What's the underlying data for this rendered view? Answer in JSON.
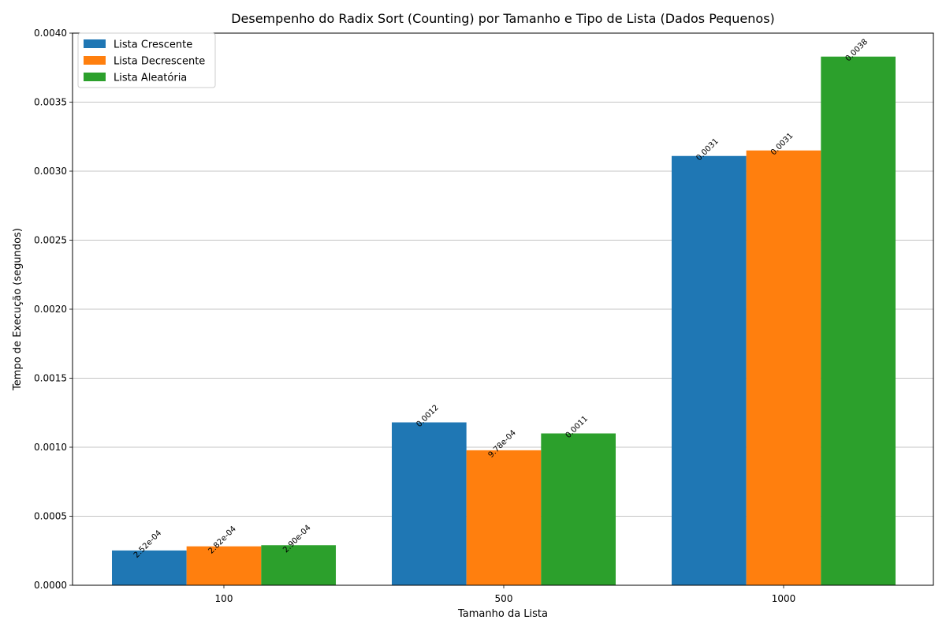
{
  "chart_data": {
    "type": "bar",
    "title": "Desempenho do Radix Sort (Counting) por Tamanho e Tipo de Lista (Dados Pequenos)",
    "xlabel": "Tamanho da Lista",
    "ylabel": "Tempo de Execução (segundos)",
    "categories": [
      "100",
      "500",
      "1000"
    ],
    "ylim": [
      0,
      0.004
    ],
    "yticks": [
      "0.0000",
      "0.0005",
      "0.0010",
      "0.0015",
      "0.0020",
      "0.0025",
      "0.0030",
      "0.0035",
      "0.0040"
    ],
    "grid": "y",
    "legend_position": "top-left",
    "series": [
      {
        "name": "Lista Crescente",
        "color": "#1f77b4",
        "values": [
          0.000252,
          0.00118,
          0.00311
        ],
        "labels": [
          "2.52e-04",
          "0.0012",
          "0.0031"
        ]
      },
      {
        "name": "Lista Decrescente",
        "color": "#ff7f0e",
        "values": [
          0.000282,
          0.000978,
          0.00315
        ],
        "labels": [
          "2.82e-04",
          "9.78e-04",
          "0.0031"
        ]
      },
      {
        "name": "Lista Aleatória",
        "color": "#2ca02c",
        "values": [
          0.00029,
          0.0011,
          0.00383
        ],
        "labels": [
          "2.90e-04",
          "0.0011",
          "0.0038"
        ]
      }
    ]
  }
}
